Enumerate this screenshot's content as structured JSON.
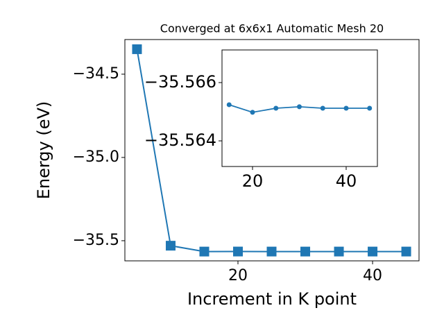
{
  "chart_data": [
    {
      "type": "line",
      "title": "Converged at 6x6x1 Automatic Mesh 20",
      "x_label": "Increment in K point",
      "y_label": "Energy (eV)",
      "x": [
        5,
        10,
        15,
        20,
        25,
        30,
        35,
        40,
        45
      ],
      "series": [
        {
          "color": "#1f77b4",
          "marker": "square",
          "values": [
            -34.35,
            -35.53,
            -35.56524,
            -35.56498,
            -35.56512,
            -35.56517,
            -35.56512,
            -35.56512,
            -35.56512
          ]
        }
      ],
      "xlim": [
        3.2,
        46.9
      ],
      "xticks": [
        20,
        40
      ],
      "ylim": [
        -35.621,
        -34.292
      ],
      "yticks": [
        {
          "value": -34.5,
          "label": "−34.5"
        },
        {
          "value": -35.0,
          "label": "−35.0"
        },
        {
          "value": -35.5,
          "label": "−35.5"
        }
      ]
    },
    {
      "type": "line",
      "x": [
        15,
        20,
        25,
        30,
        35,
        40,
        45
      ],
      "series": [
        {
          "color": "#1f77b4",
          "marker": "circle",
          "values": [
            -35.56524,
            -35.56498,
            -35.56512,
            -35.56517,
            -35.56512,
            -35.56512,
            -35.56512
          ]
        }
      ],
      "xlim": [
        13.48,
        46.67
      ],
      "xticks": [
        20,
        40
      ],
      "ylim": [
        -35.56312,
        -35.56712
      ],
      "yticks": [
        {
          "value": -35.566,
          "label": "−35.566"
        },
        {
          "value": -35.564,
          "label": "−35.564"
        }
      ]
    }
  ]
}
